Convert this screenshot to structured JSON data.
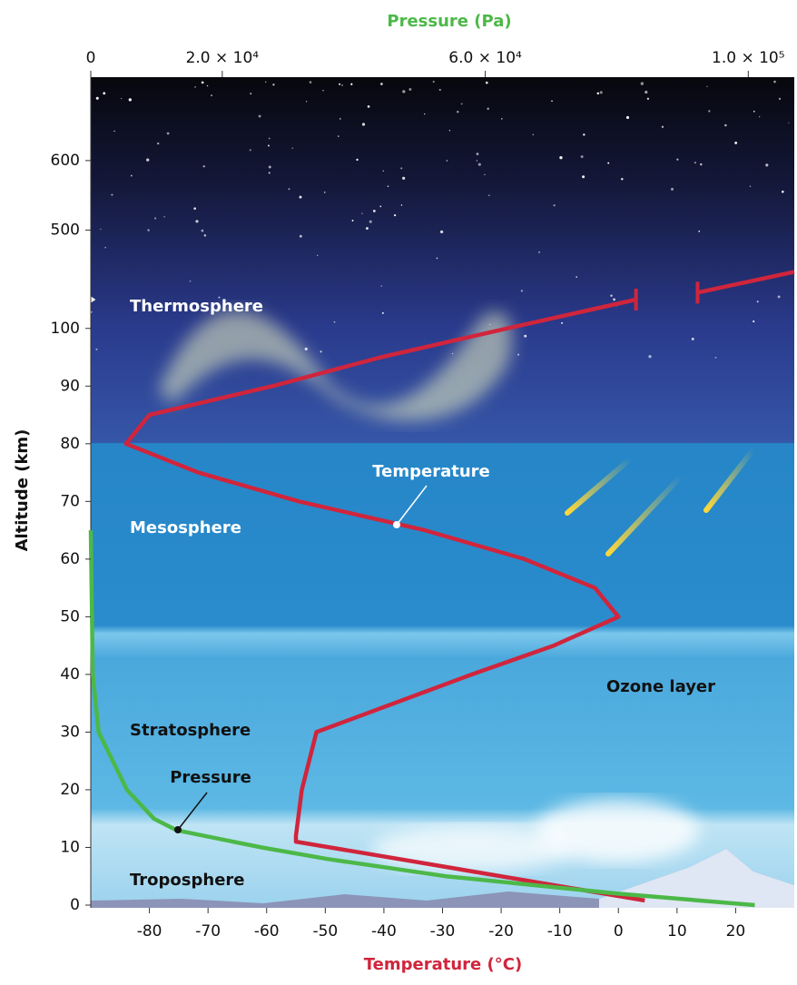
{
  "chart_data": {
    "type": "line",
    "x_label": "Temperature (°C)",
    "x2_label": "Pressure (Pa)",
    "y_label": "Altitude (km)",
    "xlim": [
      -90,
      30
    ],
    "xticks": [
      -80,
      -70,
      -60,
      -50,
      -40,
      -30,
      -20,
      -10,
      0,
      10,
      20
    ],
    "x2lim": [
      0,
      107000
    ],
    "x2ticks": [
      0,
      {
        "value": 20000,
        "label": "2.0 × 10⁴"
      },
      {
        "value": 60000,
        "label": "6.0 × 10⁴"
      },
      {
        "value": 100000,
        "label": "1.0 × 10⁵"
      }
    ],
    "ylim": [
      0,
      720
    ],
    "y_break": [
      105,
      400
    ],
    "yticks": [
      0,
      10,
      20,
      30,
      40,
      50,
      60,
      70,
      80,
      90,
      100,
      500,
      600
    ],
    "series": [
      {
        "name": "Temperature",
        "color": "#d0253c",
        "x": [
          4.5,
          -55,
          -55,
          -54,
          -51.5,
          -25,
          -11,
          0,
          -4,
          -16,
          -33,
          -54.5,
          -71.6,
          -84,
          -80,
          -59,
          -40.5,
          -19,
          3,
          null,
          13.5,
          30
        ],
        "values": [
          0.8,
          11,
          12,
          20,
          30,
          40,
          45,
          50,
          55,
          60,
          65,
          70,
          75,
          80,
          85,
          90,
          95,
          100,
          105,
          null,
          410,
          440
        ]
      },
      {
        "name": "Pressure",
        "color": "#4cb848",
        "axis": "x2",
        "x": [
          101000,
          80000,
          54000,
          36000,
          26000,
          13000,
          9600,
          5500,
          1200,
          300,
          0
        ],
        "values": [
          0,
          2,
          5,
          8,
          10,
          13,
          15,
          20,
          30,
          40,
          65
        ]
      }
    ],
    "regions": [
      "Thermosphere",
      "Mesosphere",
      "Stratosphere",
      "Troposphere",
      "Ozone layer"
    ]
  }
}
